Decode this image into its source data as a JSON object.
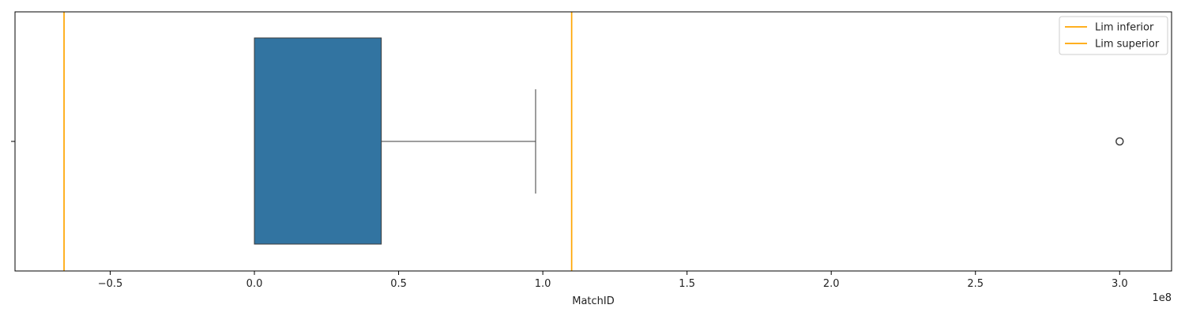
{
  "chart_data": {
    "type": "box",
    "xlabel": "MatchID",
    "ylabel": "",
    "x_offset_label": "1e8",
    "x_scale": 100000000,
    "xlim": [
      -0.83,
      3.18
    ],
    "xticks": [
      -0.5,
      0.0,
      0.5,
      1.0,
      1.5,
      2.0,
      2.5,
      3.0
    ],
    "xtick_labels": [
      "−0.5",
      "0.0",
      "0.5",
      "1.0",
      "1.5",
      "2.0",
      "2.5",
      "3.0"
    ],
    "grid": false,
    "box": {
      "whisker_low": 0.0,
      "q1": 0.0,
      "median": 0.0,
      "q3": 0.44,
      "whisker_high": 0.975,
      "outliers": [
        3.0
      ],
      "color": "#3274a1"
    },
    "reference_lines": [
      {
        "name": "Lim inferior",
        "x": -0.66,
        "color": "#ffa500"
      },
      {
        "name": "Lim superior",
        "x": 1.1,
        "color": "#ffa500"
      }
    ],
    "legend": {
      "placement": "top-right",
      "entries": [
        "Lim inferior",
        "Lim superior"
      ]
    }
  }
}
